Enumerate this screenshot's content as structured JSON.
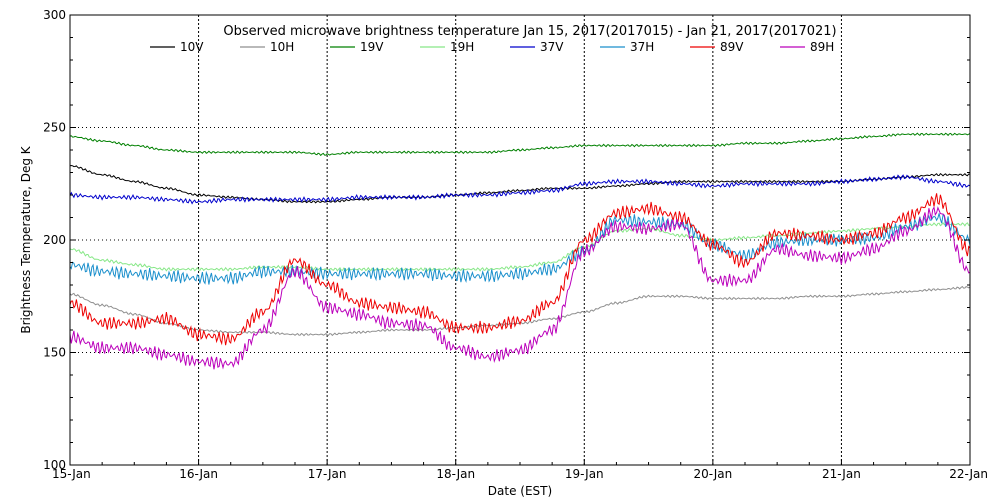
{
  "chart_data": {
    "type": "line",
    "title": "Observed microwave brightness temperature Jan 15, 2017(2017015) - Jan 21, 2017(2017021)",
    "xlabel": "Date (EST)",
    "ylabel": "Brightness Temperature, Deg K",
    "x_tick_labels": [
      "15-Jan",
      "16-Jan",
      "17-Jan",
      "18-Jan",
      "19-Jan",
      "20-Jan",
      "21-Jan",
      "22-Jan"
    ],
    "xlim": [
      "15-Jan",
      "22-Jan"
    ],
    "ylim": [
      100,
      300
    ],
    "y_ticks": [
      100,
      150,
      200,
      250,
      300
    ],
    "grid": true,
    "legend_position": "top",
    "x_sample_days": [
      0,
      0.25,
      0.5,
      0.75,
      1,
      1.25,
      1.5,
      1.75,
      2,
      2.25,
      2.5,
      2.75,
      3,
      3.25,
      3.5,
      3.75,
      4,
      4.25,
      4.5,
      4.75,
      5,
      5.25,
      5.5,
      5.75,
      6,
      6.25,
      6.5,
      6.75,
      7
    ],
    "series": [
      {
        "name": "10V",
        "color": "#000000",
        "values": [
          233,
          229,
          226,
          223,
          220,
          219,
          218,
          217,
          217,
          218,
          219,
          219,
          220,
          221,
          222,
          223,
          223,
          224,
          225,
          226,
          226,
          226,
          226,
          226,
          226,
          227,
          228,
          229,
          229
        ]
      },
      {
        "name": "10H",
        "color": "#8f8f8f",
        "values": [
          176,
          171,
          167,
          163,
          160,
          159,
          159,
          158,
          158,
          159,
          160,
          160,
          161,
          162,
          163,
          165,
          168,
          172,
          175,
          175,
          174,
          174,
          174,
          175,
          175,
          176,
          177,
          178,
          179
        ]
      },
      {
        "name": "19V",
        "color": "#008000",
        "values": [
          246,
          244,
          242,
          240,
          239,
          239,
          239,
          239,
          238,
          239,
          239,
          239,
          239,
          239,
          240,
          241,
          242,
          242,
          242,
          242,
          242,
          243,
          243,
          244,
          245,
          246,
          247,
          247,
          247
        ]
      },
      {
        "name": "19H",
        "color": "#88e888",
        "values": [
          196,
          191,
          189,
          187,
          187,
          187,
          188,
          188,
          187,
          187,
          187,
          187,
          187,
          187,
          188,
          190,
          197,
          204,
          205,
          202,
          200,
          201,
          202,
          203,
          204,
          205,
          206,
          207,
          207
        ]
      },
      {
        "name": "37V",
        "color": "#0000cc",
        "values": [
          220,
          219,
          219,
          218,
          217,
          218,
          218,
          218,
          218,
          219,
          219,
          219,
          220,
          220,
          221,
          222,
          225,
          226,
          226,
          225,
          224,
          225,
          225,
          225,
          226,
          227,
          228,
          226,
          224
        ]
      },
      {
        "name": "37H",
        "color": "#1a8fcc",
        "values": [
          189,
          186,
          185,
          184,
          183,
          183,
          186,
          186,
          185,
          185,
          185,
          185,
          184,
          184,
          185,
          187,
          195,
          209,
          208,
          207,
          198,
          193,
          199,
          200,
          200,
          201,
          206,
          210,
          200
        ]
      },
      {
        "name": "89V",
        "color": "#ee0000",
        "values": [
          172,
          163,
          163,
          165,
          158,
          156,
          168,
          191,
          180,
          172,
          170,
          168,
          161,
          161,
          164,
          172,
          200,
          212,
          214,
          210,
          198,
          190,
          203,
          202,
          200,
          203,
          210,
          218,
          195
        ]
      },
      {
        "name": "89H",
        "color": "#bb00bb",
        "values": [
          157,
          152,
          152,
          149,
          146,
          145,
          160,
          186,
          170,
          167,
          163,
          162,
          152,
          148,
          151,
          160,
          195,
          206,
          205,
          207,
          182,
          182,
          196,
          193,
          192,
          196,
          204,
          213,
          186
        ]
      }
    ]
  }
}
